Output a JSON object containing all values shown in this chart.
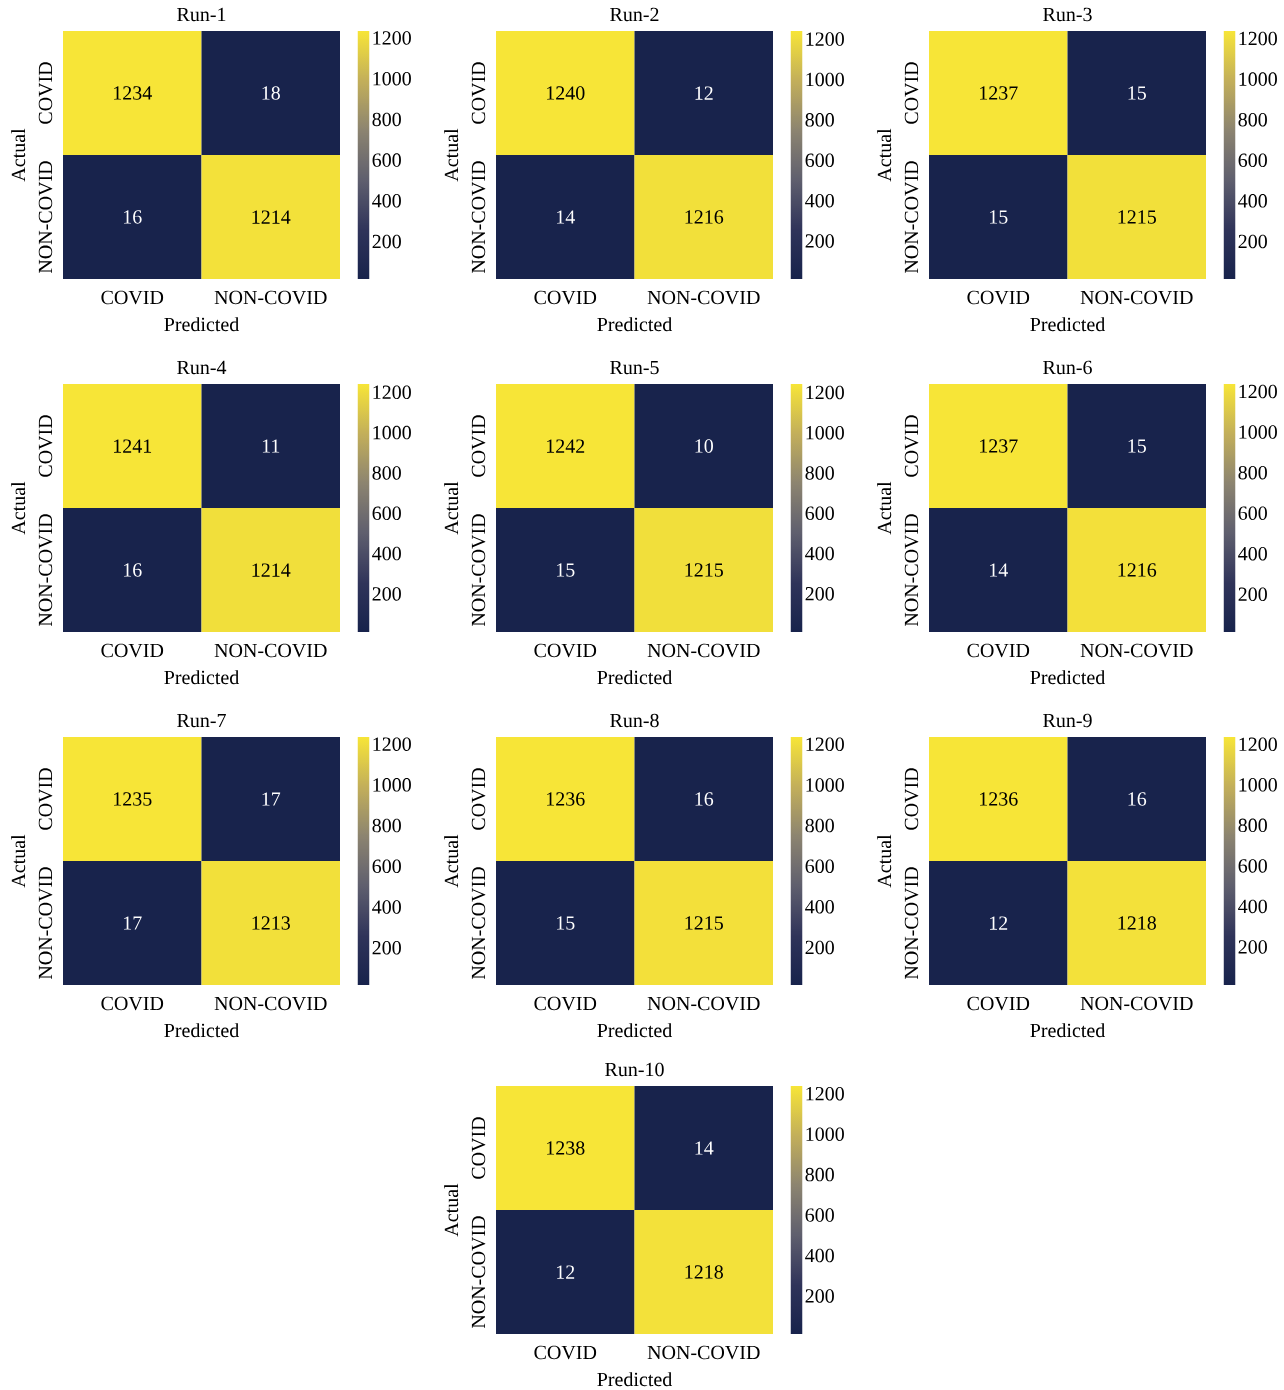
{
  "chart_data": [
    {
      "type": "heatmap",
      "title": "Run-1",
      "xlabel": "Predicted",
      "ylabel": "Actual",
      "categories": [
        "COVID",
        "NON-COVID"
      ],
      "y_categories": [
        "COVID",
        "NON-COVID"
      ],
      "cells": [
        [
          1234,
          18
        ],
        [
          16,
          1214
        ]
      ],
      "clim": [
        16,
        1234
      ],
      "cticks": [
        200,
        400,
        600,
        800,
        1000,
        1200
      ],
      "data_labels": true
    },
    {
      "type": "heatmap",
      "title": "Run-2",
      "xlabel": "Predicted",
      "ylabel": "Actual",
      "categories": [
        "COVID",
        "NON-COVID"
      ],
      "y_categories": [
        "COVID",
        "NON-COVID"
      ],
      "cells": [
        [
          1240,
          12
        ],
        [
          14,
          1216
        ]
      ],
      "clim": [
        12,
        1240
      ],
      "cticks": [
        200,
        400,
        600,
        800,
        1000,
        1200
      ],
      "data_labels": true
    },
    {
      "type": "heatmap",
      "title": "Run-3",
      "xlabel": "Predicted",
      "ylabel": "Actual",
      "categories": [
        "COVID",
        "NON-COVID"
      ],
      "y_categories": [
        "COVID",
        "NON-COVID"
      ],
      "cells": [
        [
          1237,
          15
        ],
        [
          15,
          1215
        ]
      ],
      "clim": [
        15,
        1237
      ],
      "cticks": [
        200,
        400,
        600,
        800,
        1000,
        1200
      ],
      "data_labels": true
    },
    {
      "type": "heatmap",
      "title": "Run-4",
      "xlabel": "Predicted",
      "ylabel": "Actual",
      "categories": [
        "COVID",
        "NON-COVID"
      ],
      "y_categories": [
        "COVID",
        "NON-COVID"
      ],
      "cells": [
        [
          1241,
          11
        ],
        [
          16,
          1214
        ]
      ],
      "clim": [
        11,
        1241
      ],
      "cticks": [
        200,
        400,
        600,
        800,
        1000,
        1200
      ],
      "data_labels": true
    },
    {
      "type": "heatmap",
      "title": "Run-5",
      "xlabel": "Predicted",
      "ylabel": "Actual",
      "categories": [
        "COVID",
        "NON-COVID"
      ],
      "y_categories": [
        "COVID",
        "NON-COVID"
      ],
      "cells": [
        [
          1242,
          10
        ],
        [
          15,
          1215
        ]
      ],
      "clim": [
        10,
        1242
      ],
      "cticks": [
        200,
        400,
        600,
        800,
        1000,
        1200
      ],
      "data_labels": true
    },
    {
      "type": "heatmap",
      "title": "Run-6",
      "xlabel": "Predicted",
      "ylabel": "Actual",
      "categories": [
        "COVID",
        "NON-COVID"
      ],
      "y_categories": [
        "COVID",
        "NON-COVID"
      ],
      "cells": [
        [
          1237,
          15
        ],
        [
          14,
          1216
        ]
      ],
      "clim": [
        14,
        1237
      ],
      "cticks": [
        200,
        400,
        600,
        800,
        1000,
        1200
      ],
      "data_labels": true
    },
    {
      "type": "heatmap",
      "title": "Run-7",
      "xlabel": "Predicted",
      "ylabel": "Actual",
      "categories": [
        "COVID",
        "NON-COVID"
      ],
      "y_categories": [
        "COVID",
        "NON-COVID"
      ],
      "cells": [
        [
          1235,
          17
        ],
        [
          17,
          1213
        ]
      ],
      "clim": [
        17,
        1235
      ],
      "cticks": [
        200,
        400,
        600,
        800,
        1000,
        1200
      ],
      "data_labels": true
    },
    {
      "type": "heatmap",
      "title": "Run-8",
      "xlabel": "Predicted",
      "ylabel": "Actual",
      "categories": [
        "COVID",
        "NON-COVID"
      ],
      "y_categories": [
        "COVID",
        "NON-COVID"
      ],
      "cells": [
        [
          1236,
          16
        ],
        [
          15,
          1215
        ]
      ],
      "clim": [
        15,
        1236
      ],
      "cticks": [
        200,
        400,
        600,
        800,
        1000,
        1200
      ],
      "data_labels": true
    },
    {
      "type": "heatmap",
      "title": "Run-9",
      "xlabel": "Predicted",
      "ylabel": "Actual",
      "categories": [
        "COVID",
        "NON-COVID"
      ],
      "y_categories": [
        "COVID",
        "NON-COVID"
      ],
      "cells": [
        [
          1236,
          16
        ],
        [
          12,
          1218
        ]
      ],
      "clim": [
        12,
        1236
      ],
      "cticks": [
        200,
        400,
        600,
        800,
        1000,
        1200
      ],
      "data_labels": true
    },
    {
      "type": "heatmap",
      "title": "Run-10",
      "xlabel": "Predicted",
      "ylabel": "Actual",
      "categories": [
        "COVID",
        "NON-COVID"
      ],
      "y_categories": [
        "COVID",
        "NON-COVID"
      ],
      "cells": [
        [
          1238,
          14
        ],
        [
          12,
          1218
        ]
      ],
      "clim": [
        12,
        1238
      ],
      "cticks": [
        200,
        400,
        600,
        800,
        1000,
        1200
      ],
      "data_labels": true
    }
  ]
}
